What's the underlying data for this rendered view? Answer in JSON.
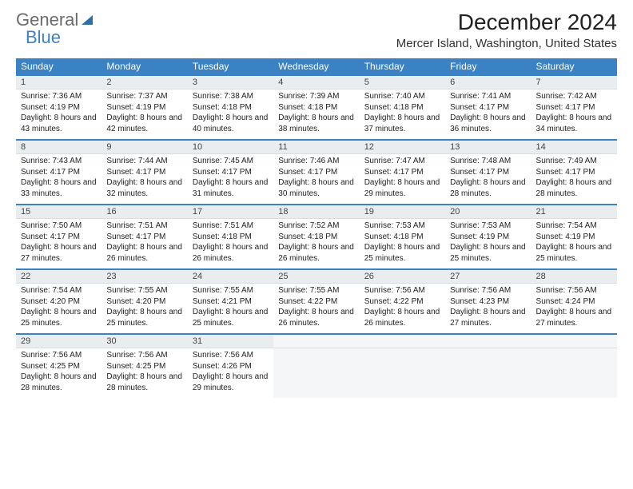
{
  "brand": {
    "part1": "General",
    "part2": "Blue"
  },
  "title": "December 2024",
  "location": "Mercer Island, Washington, United States",
  "day_headers": [
    "Sunday",
    "Monday",
    "Tuesday",
    "Wednesday",
    "Thursday",
    "Friday",
    "Saturday"
  ],
  "style": {
    "header_bg": "#3b82c4",
    "header_text": "#ffffff",
    "row_divider": "#3b82c4",
    "daynum_bg": "#e9edf0",
    "body_bg": "#ffffff",
    "empty_bg": "#f4f6f8",
    "title_fontsize": 28,
    "location_fontsize": 15,
    "th_fontsize": 12,
    "daynum_fontsize": 11,
    "body_fontsize": 10
  },
  "weeks": [
    [
      {
        "n": "1",
        "sr": "7:36 AM",
        "ss": "4:19 PM",
        "dl": "8 hours and 43 minutes."
      },
      {
        "n": "2",
        "sr": "7:37 AM",
        "ss": "4:19 PM",
        "dl": "8 hours and 42 minutes."
      },
      {
        "n": "3",
        "sr": "7:38 AM",
        "ss": "4:18 PM",
        "dl": "8 hours and 40 minutes."
      },
      {
        "n": "4",
        "sr": "7:39 AM",
        "ss": "4:18 PM",
        "dl": "8 hours and 38 minutes."
      },
      {
        "n": "5",
        "sr": "7:40 AM",
        "ss": "4:18 PM",
        "dl": "8 hours and 37 minutes."
      },
      {
        "n": "6",
        "sr": "7:41 AM",
        "ss": "4:17 PM",
        "dl": "8 hours and 36 minutes."
      },
      {
        "n": "7",
        "sr": "7:42 AM",
        "ss": "4:17 PM",
        "dl": "8 hours and 34 minutes."
      }
    ],
    [
      {
        "n": "8",
        "sr": "7:43 AM",
        "ss": "4:17 PM",
        "dl": "8 hours and 33 minutes."
      },
      {
        "n": "9",
        "sr": "7:44 AM",
        "ss": "4:17 PM",
        "dl": "8 hours and 32 minutes."
      },
      {
        "n": "10",
        "sr": "7:45 AM",
        "ss": "4:17 PM",
        "dl": "8 hours and 31 minutes."
      },
      {
        "n": "11",
        "sr": "7:46 AM",
        "ss": "4:17 PM",
        "dl": "8 hours and 30 minutes."
      },
      {
        "n": "12",
        "sr": "7:47 AM",
        "ss": "4:17 PM",
        "dl": "8 hours and 29 minutes."
      },
      {
        "n": "13",
        "sr": "7:48 AM",
        "ss": "4:17 PM",
        "dl": "8 hours and 28 minutes."
      },
      {
        "n": "14",
        "sr": "7:49 AM",
        "ss": "4:17 PM",
        "dl": "8 hours and 28 minutes."
      }
    ],
    [
      {
        "n": "15",
        "sr": "7:50 AM",
        "ss": "4:17 PM",
        "dl": "8 hours and 27 minutes."
      },
      {
        "n": "16",
        "sr": "7:51 AM",
        "ss": "4:17 PM",
        "dl": "8 hours and 26 minutes."
      },
      {
        "n": "17",
        "sr": "7:51 AM",
        "ss": "4:18 PM",
        "dl": "8 hours and 26 minutes."
      },
      {
        "n": "18",
        "sr": "7:52 AM",
        "ss": "4:18 PM",
        "dl": "8 hours and 26 minutes."
      },
      {
        "n": "19",
        "sr": "7:53 AM",
        "ss": "4:18 PM",
        "dl": "8 hours and 25 minutes."
      },
      {
        "n": "20",
        "sr": "7:53 AM",
        "ss": "4:19 PM",
        "dl": "8 hours and 25 minutes."
      },
      {
        "n": "21",
        "sr": "7:54 AM",
        "ss": "4:19 PM",
        "dl": "8 hours and 25 minutes."
      }
    ],
    [
      {
        "n": "22",
        "sr": "7:54 AM",
        "ss": "4:20 PM",
        "dl": "8 hours and 25 minutes."
      },
      {
        "n": "23",
        "sr": "7:55 AM",
        "ss": "4:20 PM",
        "dl": "8 hours and 25 minutes."
      },
      {
        "n": "24",
        "sr": "7:55 AM",
        "ss": "4:21 PM",
        "dl": "8 hours and 25 minutes."
      },
      {
        "n": "25",
        "sr": "7:55 AM",
        "ss": "4:22 PM",
        "dl": "8 hours and 26 minutes."
      },
      {
        "n": "26",
        "sr": "7:56 AM",
        "ss": "4:22 PM",
        "dl": "8 hours and 26 minutes."
      },
      {
        "n": "27",
        "sr": "7:56 AM",
        "ss": "4:23 PM",
        "dl": "8 hours and 27 minutes."
      },
      {
        "n": "28",
        "sr": "7:56 AM",
        "ss": "4:24 PM",
        "dl": "8 hours and 27 minutes."
      }
    ],
    [
      {
        "n": "29",
        "sr": "7:56 AM",
        "ss": "4:25 PM",
        "dl": "8 hours and 28 minutes."
      },
      {
        "n": "30",
        "sr": "7:56 AM",
        "ss": "4:25 PM",
        "dl": "8 hours and 28 minutes."
      },
      {
        "n": "31",
        "sr": "7:56 AM",
        "ss": "4:26 PM",
        "dl": "8 hours and 29 minutes."
      },
      null,
      null,
      null,
      null
    ]
  ],
  "labels": {
    "sunrise": "Sunrise: ",
    "sunset": "Sunset: ",
    "daylight": "Daylight: "
  }
}
